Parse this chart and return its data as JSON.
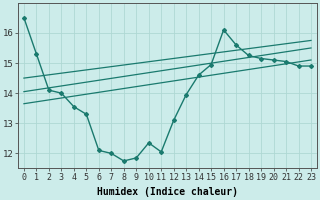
{
  "xlabel": "Humidex (Indice chaleur)",
  "background_color": "#ccecea",
  "grid_color": "#afd8d4",
  "line_color": "#1a7a6e",
  "x_data": [
    0,
    1,
    2,
    3,
    4,
    5,
    6,
    7,
    8,
    9,
    10,
    11,
    12,
    13,
    14,
    15,
    16,
    17,
    18,
    19,
    20,
    21,
    22,
    23
  ],
  "y_main": [
    16.5,
    15.3,
    14.1,
    14.0,
    13.55,
    13.3,
    12.1,
    12.0,
    11.75,
    11.85,
    12.35,
    12.05,
    13.1,
    13.95,
    14.6,
    14.95,
    16.1,
    15.6,
    15.25,
    15.15,
    15.1,
    15.05,
    14.9,
    14.9
  ],
  "trend1_x": [
    0,
    23
  ],
  "trend1_y": [
    14.05,
    15.5
  ],
  "trend2_x": [
    0,
    23
  ],
  "trend2_y": [
    13.65,
    15.1
  ],
  "trend3_x": [
    0,
    23
  ],
  "trend3_y": [
    14.5,
    15.75
  ],
  "ylim": [
    11.5,
    17.0
  ],
  "xlim": [
    -0.5,
    23.5
  ],
  "yticks": [
    12,
    13,
    14,
    15,
    16
  ],
  "xticks": [
    0,
    1,
    2,
    3,
    4,
    5,
    6,
    7,
    8,
    9,
    10,
    11,
    12,
    13,
    14,
    15,
    16,
    17,
    18,
    19,
    20,
    21,
    22,
    23
  ],
  "xtick_labels": [
    "0",
    "1",
    "2",
    "3",
    "4",
    "5",
    "6",
    "7",
    "8",
    "9",
    "10",
    "11",
    "12",
    "13",
    "14",
    "15",
    "16",
    "17",
    "18",
    "19",
    "20",
    "21",
    "22",
    "23"
  ],
  "font_size": 6.5
}
